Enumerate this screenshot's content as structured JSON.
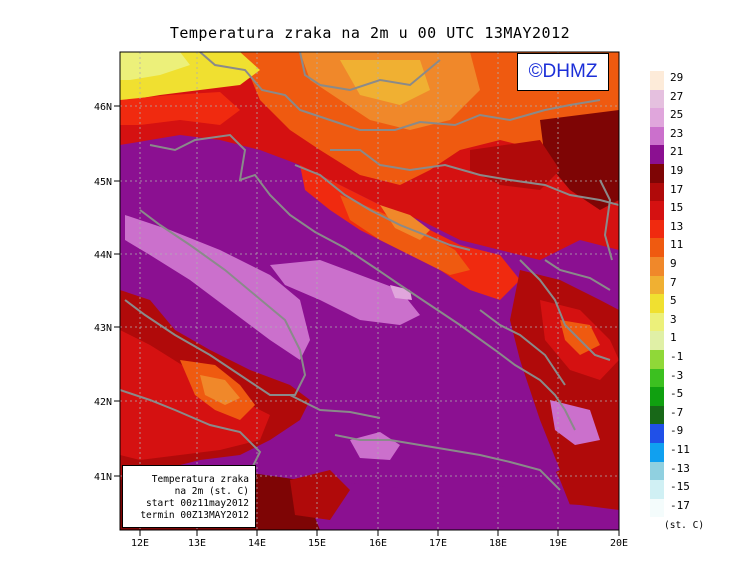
{
  "title": "Temperatura zraka na 2m u 00 UTC 13MAY2012",
  "logo_text": "©DHMZ",
  "info_box": {
    "line1": "Temperatura zraka",
    "line2": "na 2m (st. C)",
    "line3": "start 00z11may2012",
    "line4": "termin 00Z13MAY2012"
  },
  "lat_labels": [
    "46N",
    "45N",
    "44N",
    "43N",
    "42N",
    "41N"
  ],
  "lon_labels": [
    "12E",
    "13E",
    "14E",
    "15E",
    "16E",
    "17E",
    "18E",
    "19E",
    "20E"
  ],
  "legend": {
    "unit": "(st. C)",
    "labels": [
      "29",
      "27",
      "25",
      "23",
      "21",
      "19",
      "17",
      "15",
      "13",
      "11",
      "9",
      "7",
      "5",
      "3",
      "1",
      "-1",
      "-3",
      "-5",
      "-7",
      "-9",
      "-11",
      "-13",
      "-15",
      "-17"
    ],
    "colors": [
      "#fdebd9",
      "#e5c0df",
      "#e0a6dc",
      "#cb70cc",
      "#8b1091",
      "#7e0505",
      "#b00a0a",
      "#d51111",
      "#f02a0f",
      "#ef5a10",
      "#f0882a",
      "#f0b032",
      "#f0e030",
      "#ecf07a",
      "#e0f0a6",
      "#90d838",
      "#3cc020",
      "#10a010",
      "#186818",
      "#2050e8",
      "#10a0f0",
      "#90d0e0",
      "#d0f0f4",
      "#f4fcfc"
    ]
  },
  "colors": {
    "frame": "#000000",
    "coast": "#8a8a8a",
    "gridline": "#b0b0b0",
    "logo": "#1c2fd8"
  }
}
